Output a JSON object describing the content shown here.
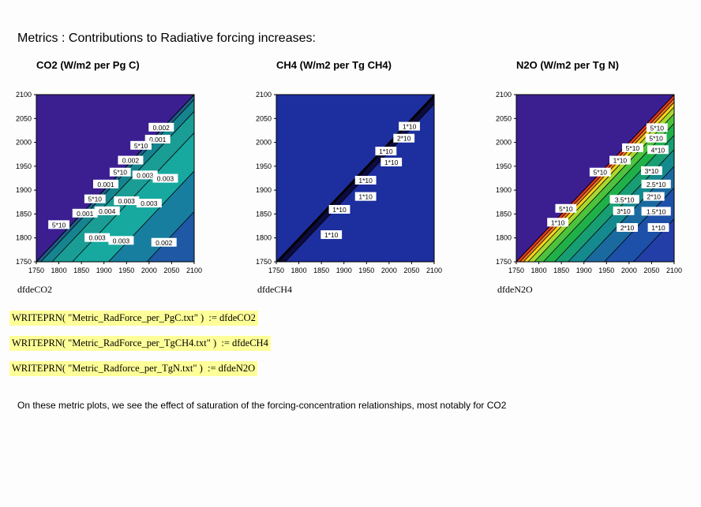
{
  "title": "Metrics : Contributions to Radiative forcing increases:",
  "plots": [
    {
      "title": "CO2 (W/m2 per Pg C)",
      "variable": "dfdeCO2"
    },
    {
      "title": "CH4 (W/m2 per Tg CH4)",
      "variable": "dfdeCH4"
    },
    {
      "title": "N2O (W/m2 per Tg N)",
      "variable": "dfdeN2O"
    }
  ],
  "commands": [
    "WRITEPRN( \"Metric_RadForce_per_PgC.txt\" )  := dfdeCO2",
    "WRITEPRN( \"Metric_RadForce_per_TgCH4.txt\" )  := dfdeCH4",
    "WRITEPRN( \"Metric_Radforce_per_TgN.txt\" )  := dfdeN2O"
  ],
  "note": "On these metric plots, we see the effect of saturation of the forcing-concentration relationships, most notably for CO2",
  "chart_data": [
    {
      "type": "heatmap",
      "subtype": "contour",
      "title": "CO2 (W/m2 per Pg C)",
      "xlabel": "dfdeCO2",
      "ylabel": "",
      "xlim": [
        1750,
        2100
      ],
      "ylim": [
        1750,
        2100
      ],
      "xticks": [
        1750,
        1800,
        1850,
        1900,
        1950,
        2000,
        2050,
        2100
      ],
      "yticks": [
        1750,
        1800,
        1850,
        1900,
        1950,
        2000,
        2050,
        2100
      ],
      "x_tick_labels": [
        "1750",
        "1800",
        "1850",
        "1900",
        "1950",
        "2000",
        "2050",
        "2100"
      ],
      "y_tick_labels": [
        "1750",
        "1800",
        "1850",
        "1900",
        "1950",
        "2000",
        "2050",
        "2100"
      ],
      "upper_triangle_color": "#3b1f91",
      "bands": [
        {
          "offset": 10,
          "color": "#1e5d8a"
        },
        {
          "offset": 35,
          "color": "#16848e"
        },
        {
          "offset": 80,
          "color": "#1a9d95"
        },
        {
          "offset": 160,
          "color": "#17a9a0"
        },
        {
          "offset": 245,
          "color": "#177ea0"
        },
        {
          "offset": 400,
          "color": "#1f58a4"
        }
      ],
      "contour_labels": [
        {
          "x": 2027,
          "y": 2031,
          "text": "0.002"
        },
        {
          "x": 2019,
          "y": 2006,
          "text": "0.001"
        },
        {
          "x": 1982,
          "y": 1993,
          "text": "5*10"
        },
        {
          "x": 1959,
          "y": 1962,
          "text": "0.002"
        },
        {
          "x": 1936,
          "y": 1937,
          "text": "5*10"
        },
        {
          "x": 1991,
          "y": 1931,
          "text": "0.003"
        },
        {
          "x": 2036,
          "y": 1924,
          "text": "0.003"
        },
        {
          "x": 1904,
          "y": 1912,
          "text": "0.001"
        },
        {
          "x": 1880,
          "y": 1881,
          "text": "5*10"
        },
        {
          "x": 1950,
          "y": 1877,
          "text": "0.003"
        },
        {
          "x": 2000,
          "y": 1872,
          "text": "0.003"
        },
        {
          "x": 1907,
          "y": 1856,
          "text": "0.004"
        },
        {
          "x": 1858,
          "y": 1851,
          "text": "0.001"
        },
        {
          "x": 1800,
          "y": 1827,
          "text": "5*10"
        },
        {
          "x": 1885,
          "y": 1800,
          "text": "0.003"
        },
        {
          "x": 1938,
          "y": 1794,
          "text": "0.003"
        },
        {
          "x": 2033,
          "y": 1790,
          "text": "0.002"
        }
      ]
    },
    {
      "type": "heatmap",
      "subtype": "contour",
      "title": "CH4 (W/m2 per Tg CH4)",
      "xlabel": "dfdeCH4",
      "ylabel": "",
      "xlim": [
        1750,
        2100
      ],
      "ylim": [
        1750,
        2100
      ],
      "xticks": [
        1750,
        1800,
        1850,
        1900,
        1950,
        2000,
        2050,
        2100
      ],
      "yticks": [
        1750,
        1800,
        1850,
        1900,
        1950,
        2000,
        2050,
        2100
      ],
      "x_tick_labels": [
        "1750",
        "1800",
        "1850",
        "1900",
        "1950",
        "2000",
        "2050",
        "2100"
      ],
      "y_tick_labels": [
        "1750",
        "1800",
        "1850",
        "1900",
        "1950",
        "2000",
        "2050",
        "2100"
      ],
      "upper_triangle_color": "#1d2e9e",
      "bands": [
        {
          "offset": 5,
          "color": "#000000"
        },
        {
          "offset": 20,
          "color": "#0c0c40"
        },
        {
          "offset": 400,
          "color": "#1d2e9e"
        }
      ],
      "contour_labels": [
        {
          "x": 2045,
          "y": 2033,
          "text": "1*10"
        },
        {
          "x": 2033,
          "y": 2008,
          "text": "2*10"
        },
        {
          "x": 1993,
          "y": 1981,
          "text": "1*10"
        },
        {
          "x": 2005,
          "y": 1958,
          "text": "1*10"
        },
        {
          "x": 1948,
          "y": 1920,
          "text": "1*10"
        },
        {
          "x": 1948,
          "y": 1886,
          "text": "1*10"
        },
        {
          "x": 1890,
          "y": 1859,
          "text": "1*10"
        },
        {
          "x": 1872,
          "y": 1806,
          "text": "1*10"
        }
      ]
    },
    {
      "type": "heatmap",
      "subtype": "contour",
      "title": "N2O (W/m2 per Tg N)",
      "xlabel": "dfdeN2O",
      "ylabel": "",
      "xlim": [
        1750,
        2100
      ],
      "ylim": [
        1750,
        2100
      ],
      "xticks": [
        1750,
        1800,
        1850,
        1900,
        1950,
        2000,
        2050,
        2100
      ],
      "yticks": [
        1750,
        1800,
        1850,
        1900,
        1950,
        2000,
        2050,
        2100
      ],
      "x_tick_labels": [
        "1750",
        "1800",
        "1850",
        "1900",
        "1950",
        "2000",
        "2050",
        "2100"
      ],
      "y_tick_labels": [
        "1750",
        "1800",
        "1850",
        "1900",
        "1950",
        "2000",
        "2050",
        "2100"
      ],
      "upper_triangle_color": "#3b1f91",
      "bands": [
        {
          "offset": 8,
          "color": "#e83a1e"
        },
        {
          "offset": 16,
          "color": "#f07a1e"
        },
        {
          "offset": 26,
          "color": "#f5d21c"
        },
        {
          "offset": 40,
          "color": "#a8d832"
        },
        {
          "offset": 60,
          "color": "#4cc23e"
        },
        {
          "offset": 85,
          "color": "#20b04a"
        },
        {
          "offset": 115,
          "color": "#189e73"
        },
        {
          "offset": 150,
          "color": "#148a8e"
        },
        {
          "offset": 195,
          "color": "#1a6aa0"
        },
        {
          "offset": 260,
          "color": "#1d50a8"
        },
        {
          "offset": 400,
          "color": "#243ea8"
        }
      ],
      "contour_labels": [
        {
          "x": 2062,
          "y": 2030,
          "text": "5*10"
        },
        {
          "x": 2060,
          "y": 2008,
          "text": "5*10"
        },
        {
          "x": 2064,
          "y": 1984,
          "text": "4*10"
        },
        {
          "x": 2008,
          "y": 1988,
          "text": "5*10"
        },
        {
          "x": 1980,
          "y": 1962,
          "text": "1*10"
        },
        {
          "x": 1936,
          "y": 1937,
          "text": "5*10"
        },
        {
          "x": 2050,
          "y": 1940,
          "text": "3*10"
        },
        {
          "x": 2060,
          "y": 1912,
          "text": "2.5*10"
        },
        {
          "x": 2055,
          "y": 1886,
          "text": "2*10"
        },
        {
          "x": 1990,
          "y": 1880,
          "text": "3.5*10"
        },
        {
          "x": 1988,
          "y": 1856,
          "text": "3*10"
        },
        {
          "x": 2060,
          "y": 1855,
          "text": "1.5*10"
        },
        {
          "x": 1860,
          "y": 1861,
          "text": "5*10"
        },
        {
          "x": 1842,
          "y": 1832,
          "text": "1*10"
        },
        {
          "x": 1996,
          "y": 1821,
          "text": "2*10"
        },
        {
          "x": 2065,
          "y": 1821,
          "text": "1*10"
        }
      ]
    }
  ]
}
